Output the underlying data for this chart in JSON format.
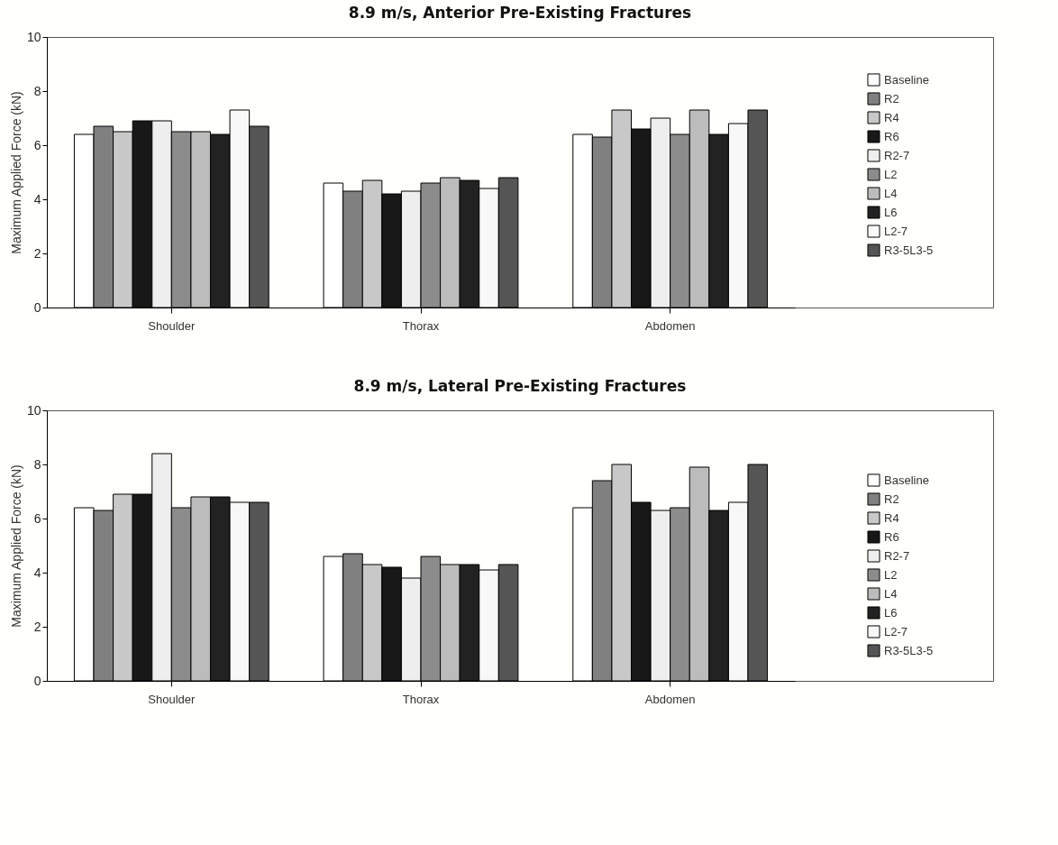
{
  "chart_data": [
    {
      "type": "bar",
      "title": "8.9 m/s, Anterior Pre-Existing Fractures",
      "ylabel": "Maximum Applied Force (kN)",
      "categories": [
        "Shoulder",
        "Thorax",
        "Abdomen"
      ],
      "ylim": [
        0,
        10
      ],
      "yticks": [
        0,
        2,
        4,
        6,
        8,
        10
      ],
      "grid": false,
      "legend": "right",
      "series": [
        {
          "name": "Baseline",
          "color": "#ffffff",
          "values": [
            6.4,
            4.6,
            6.4
          ]
        },
        {
          "name": "R2",
          "color": "#808080",
          "values": [
            6.7,
            4.3,
            6.3
          ]
        },
        {
          "name": "R4",
          "color": "#c8c8c8",
          "values": [
            6.5,
            4.7,
            7.3
          ]
        },
        {
          "name": "R6",
          "color": "#181818",
          "values": [
            6.9,
            4.2,
            6.6
          ]
        },
        {
          "name": "R2-7",
          "color": "#eeeeee",
          "values": [
            6.9,
            4.3,
            7.0
          ]
        },
        {
          "name": "L2",
          "color": "#8c8c8c",
          "values": [
            6.5,
            4.6,
            6.4
          ]
        },
        {
          "name": "L4",
          "color": "#bcbcbc",
          "values": [
            6.5,
            4.8,
            7.3
          ]
        },
        {
          "name": "L6",
          "color": "#222222",
          "values": [
            6.4,
            4.7,
            6.4
          ]
        },
        {
          "name": "L2-7",
          "color": "#f8f8f8",
          "values": [
            7.3,
            4.4,
            6.8
          ]
        },
        {
          "name": "R3-5L3-5",
          "color": "#555555",
          "values": [
            6.7,
            4.8,
            7.3
          ]
        }
      ]
    },
    {
      "type": "bar",
      "title": "8.9 m/s, Lateral Pre-Existing Fractures",
      "ylabel": "Maximum Applied Force (kN)",
      "categories": [
        "Shoulder",
        "Thorax",
        "Abdomen"
      ],
      "ylim": [
        0,
        10
      ],
      "yticks": [
        0,
        2,
        4,
        6,
        8,
        10
      ],
      "grid": false,
      "legend": "right",
      "series": [
        {
          "name": "Baseline",
          "color": "#ffffff",
          "values": [
            6.4,
            4.6,
            6.4
          ]
        },
        {
          "name": "R2",
          "color": "#808080",
          "values": [
            6.3,
            4.7,
            7.4
          ]
        },
        {
          "name": "R4",
          "color": "#c8c8c8",
          "values": [
            6.9,
            4.3,
            8.0
          ]
        },
        {
          "name": "R6",
          "color": "#181818",
          "values": [
            6.9,
            4.2,
            6.6
          ]
        },
        {
          "name": "R2-7",
          "color": "#eeeeee",
          "values": [
            8.4,
            3.8,
            6.3
          ]
        },
        {
          "name": "L2",
          "color": "#8c8c8c",
          "values": [
            6.4,
            4.6,
            6.4
          ]
        },
        {
          "name": "L4",
          "color": "#bcbcbc",
          "values": [
            6.8,
            4.3,
            7.9
          ]
        },
        {
          "name": "L6",
          "color": "#222222",
          "values": [
            6.8,
            4.3,
            6.3
          ]
        },
        {
          "name": "L2-7",
          "color": "#f8f8f8",
          "values": [
            6.6,
            4.1,
            6.6
          ]
        },
        {
          "name": "R3-5L3-5",
          "color": "#555555",
          "values": [
            6.6,
            4.3,
            8.0
          ]
        }
      ]
    }
  ]
}
